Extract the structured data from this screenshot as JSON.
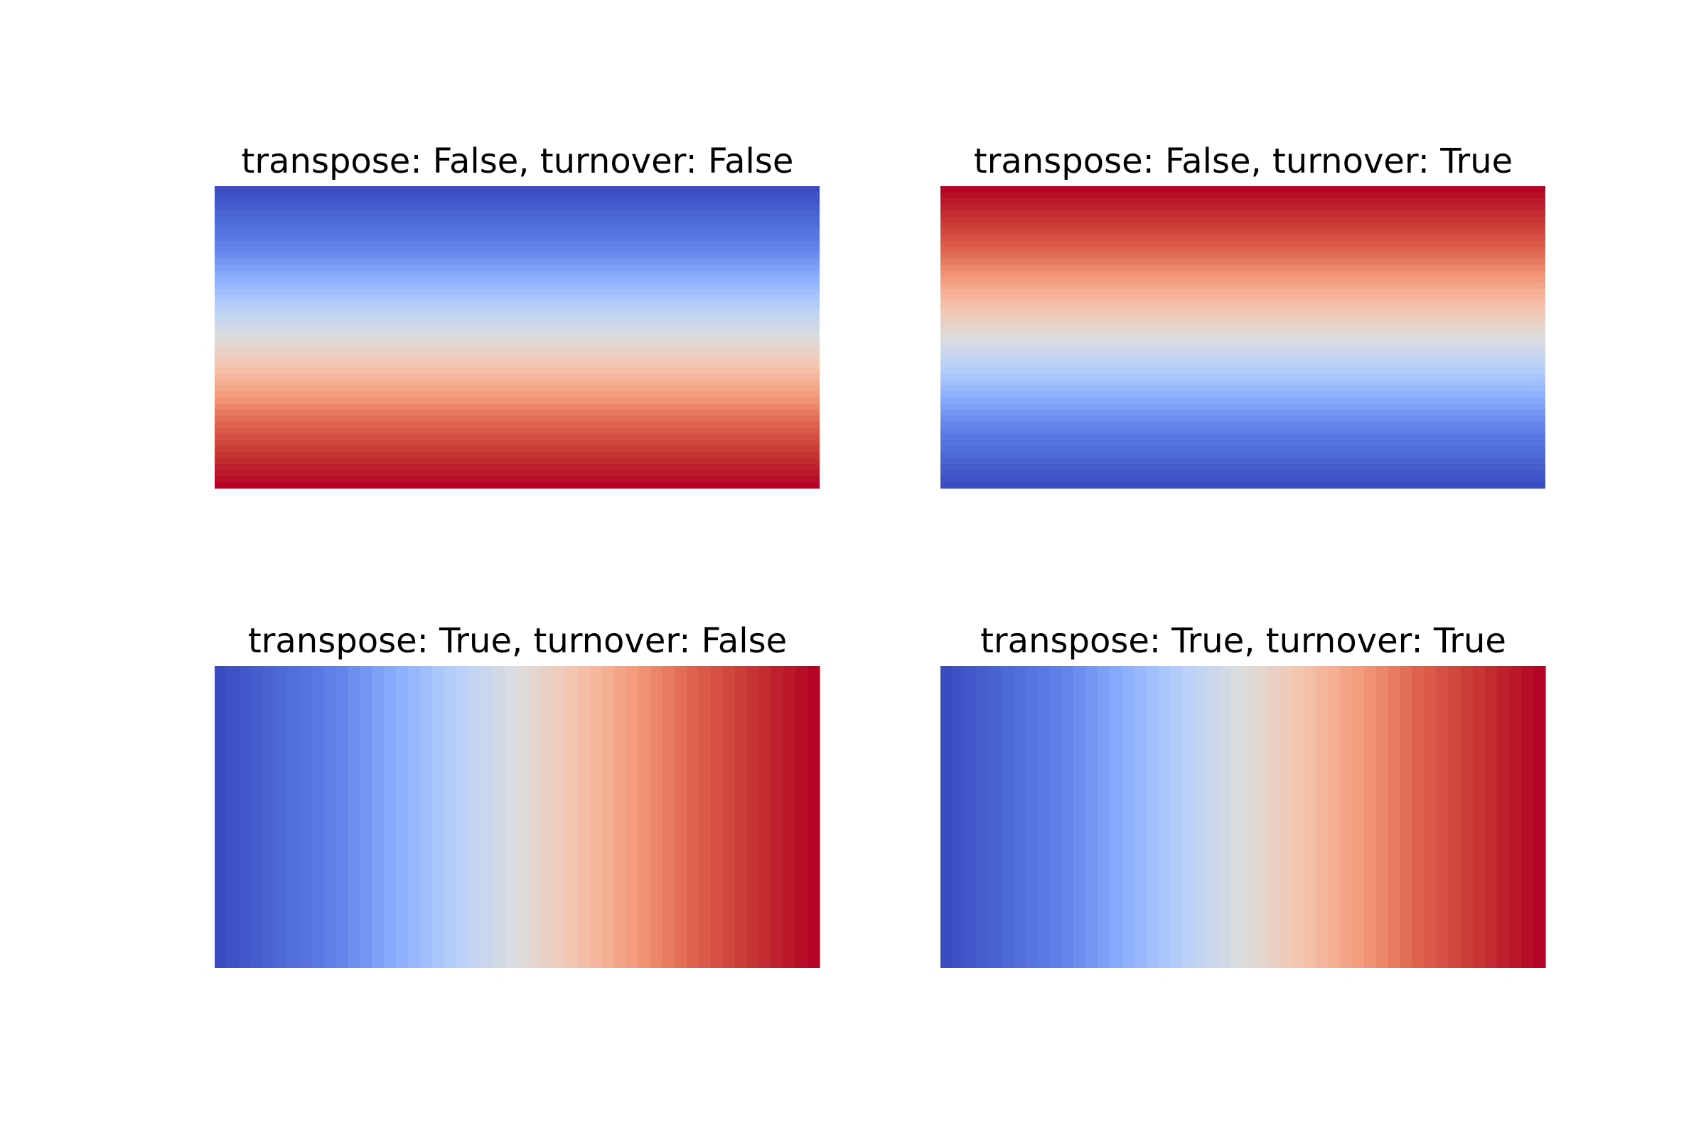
{
  "chart_data": [
    {
      "type": "heatmap",
      "title": "transpose: False, turnover: False",
      "colormap": "coolwarm",
      "orientation": "horizontal-bands",
      "gradient_direction": "top-to-bottom",
      "value_range": [
        0,
        1
      ],
      "n_bands": 50,
      "axes_visible": false,
      "start_color": "#3b4cc0",
      "end_color": "#b40426"
    },
    {
      "type": "heatmap",
      "title": "transpose: False, turnover: True",
      "colormap": "coolwarm",
      "orientation": "horizontal-bands",
      "gradient_direction": "bottom-to-top",
      "value_range": [
        0,
        1
      ],
      "n_bands": 50,
      "axes_visible": false,
      "start_color": "#3b4cc0",
      "end_color": "#b40426"
    },
    {
      "type": "heatmap",
      "title": "transpose: True, turnover: False",
      "colormap": "coolwarm",
      "orientation": "vertical-bands",
      "gradient_direction": "left-to-right",
      "value_range": [
        0,
        1
      ],
      "n_bands": 50,
      "axes_visible": false,
      "start_color": "#3b4cc0",
      "end_color": "#b40426"
    },
    {
      "type": "heatmap",
      "title": "transpose: True, turnover: True",
      "colormap": "coolwarm",
      "orientation": "vertical-bands",
      "gradient_direction": "left-to-right",
      "value_range": [
        0,
        1
      ],
      "n_bands": 50,
      "axes_visible": false,
      "start_color": "#3b4cc0",
      "end_color": "#b40426"
    }
  ]
}
